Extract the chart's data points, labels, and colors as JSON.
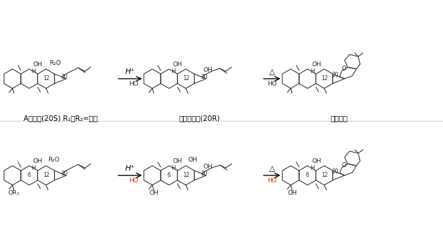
{
  "background": "#ffffff",
  "top_labels": [
    "A型皂苷(20S) R₁、R₂=糖基",
    "原人参二醇(20R)",
    "人参二醇"
  ],
  "arrow_labels_top": [
    "H⁺",
    "△"
  ],
  "arrow_labels_bot": [
    "H⁺",
    "△"
  ],
  "lc": "#2a2a2a",
  "red": "#cc3300",
  "blue": "#0055aa",
  "lw": 0.75
}
